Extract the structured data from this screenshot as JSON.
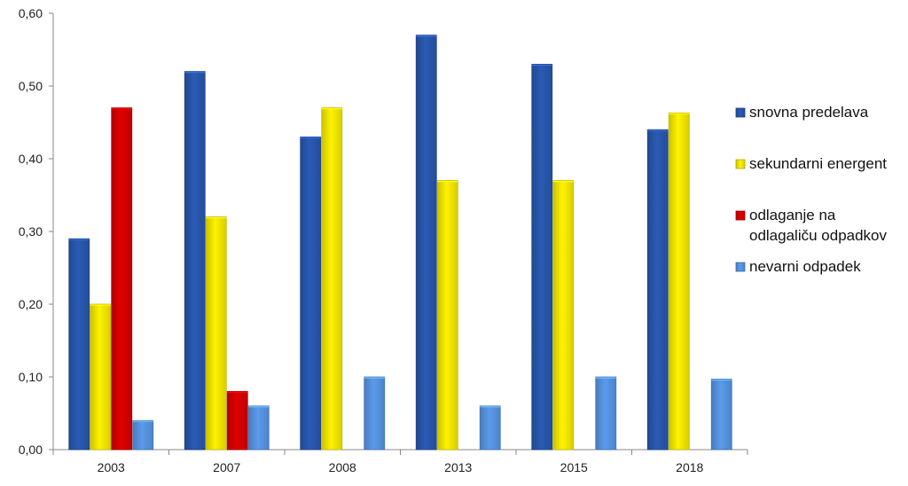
{
  "chart_data": {
    "type": "bar",
    "categories": [
      "2003",
      "2007",
      "2008",
      "2013",
      "2015",
      "2018"
    ],
    "series": [
      {
        "name": "snovna predelava",
        "color": "#2A5BB5",
        "values": [
          0.29,
          0.52,
          0.43,
          0.57,
          0.53,
          0.44
        ]
      },
      {
        "name": "sekundarni energent",
        "color": "#FFF200",
        "values": [
          0.2,
          0.32,
          0.47,
          0.37,
          0.37,
          0.463
        ]
      },
      {
        "name": "odlaganje na\nodlagaliču odpadkov",
        "color": "#E00000",
        "values": [
          0.47,
          0.08,
          null,
          null,
          null,
          null
        ]
      },
      {
        "name": "nevarni odpadek",
        "color": "#5B9BEB",
        "values": [
          0.04,
          0.06,
          0.1,
          0.06,
          0.1,
          0.097
        ]
      }
    ],
    "y_ticks": [
      "0,00",
      "0,10",
      "0,20",
      "0,30",
      "0,40",
      "0,50",
      "0,60"
    ],
    "ylim": [
      0,
      0.6
    ],
    "grid": false,
    "legend_position": "right"
  }
}
